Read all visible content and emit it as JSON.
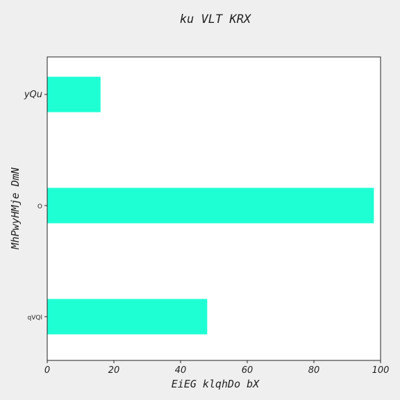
{
  "chart_data": {
    "type": "bar",
    "orientation": "horizontal",
    "title": "ku VLT KRX",
    "xlabel": "EiEG klqhDo bX",
    "ylabel": "MhPwyHMje DmN",
    "categories": [
      "yQu",
      "O",
      "qVQl"
    ],
    "values": [
      16,
      98,
      48
    ],
    "xlim": [
      0,
      100
    ],
    "xticks": [
      0,
      20,
      40,
      60,
      80,
      100
    ],
    "bar_color": "#1fffd4",
    "grid": false
  }
}
